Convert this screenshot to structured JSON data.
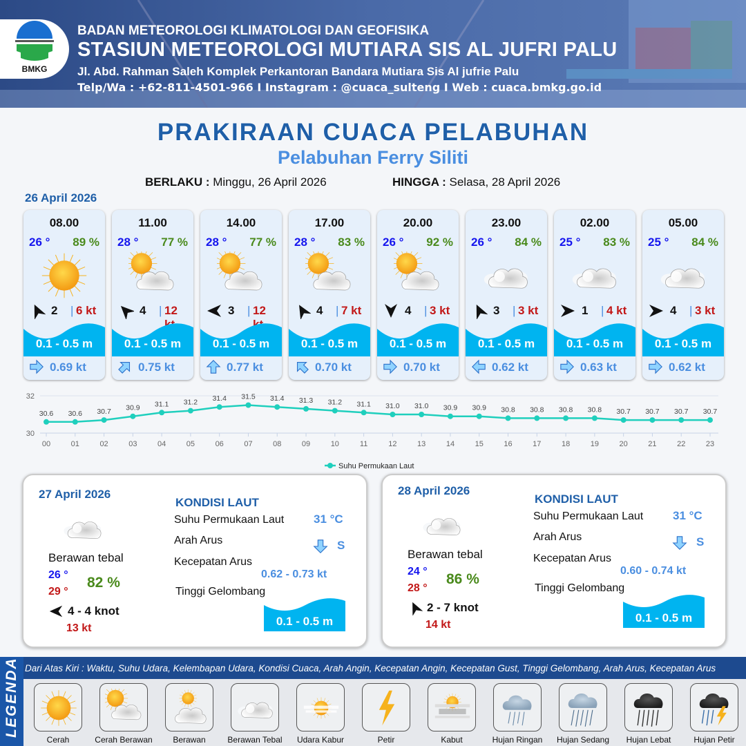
{
  "header": {
    "org": "BADAN METEOROLOGI KLIMATOLOGI DAN GEOFISIKA",
    "station": "STASIUN METEOROLOGI MUTIARA SIS AL JUFRI PALU",
    "address": "Jl. Abd. Rahman Saleh Komplek Perkantoran Bandara Mutiara Sis Al jufrie Palu",
    "contact": "Telp/Wa : +62-811-4501-966  I  Instagram : @cuaca_sulteng  I  Web : cuaca.bmkg.go.id",
    "logo_text": "BMKG"
  },
  "title": "PRAKIRAAN CUACA PELABUHAN",
  "subtitle": "Pelabuhan Ferry Siliti",
  "validity": {
    "from_label": "BERLAKU :",
    "from_value": "Minggu, 26 April 2026",
    "to_label": "HINGGA :",
    "to_value": "Selasa, 28 April 2026"
  },
  "day1_label": "26 April 2026",
  "colors": {
    "temp": "#1515ee",
    "humidity": "#4a8a1c",
    "gust": "#c21818",
    "wave": "#00b4f0",
    "current": "#4a8ee0",
    "chart_line": "#1fcfbd",
    "title": "#1f5fa8"
  },
  "forecasts": [
    {
      "time": "08.00",
      "temp": "26 °",
      "hum": "89 %",
      "weather": "sunny-icon",
      "wind_dir_deg": -25,
      "wind": "2",
      "gust": "6 kt",
      "wave": "0.1 - 0.5 m",
      "current_dir_deg": 90,
      "current": "0.69 kt"
    },
    {
      "time": "11.00",
      "temp": "28 °",
      "hum": "77 %",
      "weather": "partly-cloudy-icon",
      "wind_dir_deg": -45,
      "wind": "4",
      "gust": "12 kt",
      "wave": "0.1 - 0.5 m",
      "current_dir_deg": 45,
      "current": "0.75 kt"
    },
    {
      "time": "14.00",
      "temp": "28 °",
      "hum": "77 %",
      "weather": "partly-cloudy-icon",
      "wind_dir_deg": -90,
      "wind": "3",
      "gust": "12 kt",
      "wave": "0.1 - 0.5 m",
      "current_dir_deg": 0,
      "current": "0.77 kt"
    },
    {
      "time": "17.00",
      "temp": "28 °",
      "hum": "83 %",
      "weather": "partly-cloudy-icon",
      "wind_dir_deg": -30,
      "wind": "4",
      "gust": "7 kt",
      "wave": "0.1 - 0.5 m",
      "current_dir_deg": -45,
      "current": "0.70 kt"
    },
    {
      "time": "20.00",
      "temp": "26 °",
      "hum": "92 %",
      "weather": "partly-cloudy-icon",
      "wind_dir_deg": 180,
      "wind": "4",
      "gust": "3 kt",
      "wave": "0.1 - 0.5 m",
      "current_dir_deg": 90,
      "current": "0.70 kt"
    },
    {
      "time": "23.00",
      "temp": "26 °",
      "hum": "84 %",
      "weather": "cloudy-icon",
      "wind_dir_deg": -25,
      "wind": "3",
      "gust": "3 kt",
      "wave": "0.1 - 0.5 m",
      "current_dir_deg": -90,
      "current": "0.62 kt"
    },
    {
      "time": "02.00",
      "temp": "25 °",
      "hum": "83 %",
      "weather": "cloudy-icon",
      "wind_dir_deg": 90,
      "wind": "1",
      "gust": "4 kt",
      "wave": "0.1 - 0.5 m",
      "current_dir_deg": 90,
      "current": "0.63 kt"
    },
    {
      "time": "05.00",
      "temp": "25 °",
      "hum": "84 %",
      "weather": "cloudy-icon",
      "wind_dir_deg": 90,
      "wind": "4",
      "gust": "3 kt",
      "wave": "0.1 - 0.5 m",
      "current_dir_deg": 90,
      "current": "0.62 kt"
    }
  ],
  "chart_data": {
    "type": "line",
    "x": [
      "00",
      "01",
      "02",
      "03",
      "04",
      "05",
      "06",
      "07",
      "08",
      "09",
      "10",
      "11",
      "12",
      "13",
      "14",
      "15",
      "16",
      "17",
      "18",
      "19",
      "20",
      "21",
      "22",
      "23"
    ],
    "series": [
      {
        "name": "Suhu Permukaan Laut",
        "values": [
          30.6,
          30.6,
          30.7,
          30.9,
          31.1,
          31.2,
          31.4,
          31.5,
          31.4,
          31.3,
          31.2,
          31.1,
          31.0,
          31.0,
          30.9,
          30.9,
          30.8,
          30.8,
          30.8,
          30.8,
          30.7,
          30.7,
          30.7,
          30.7
        ]
      }
    ],
    "ylim": [
      30,
      32
    ],
    "yticks": [
      "30",
      "32"
    ],
    "grid": true,
    "legend": "bottom"
  },
  "days": [
    {
      "date": "27 April 2026",
      "weather": "Berawan tebal",
      "weather_icon": "cloudy-icon",
      "tmin": "26 °",
      "tmax": "29 °",
      "hum": "82 %",
      "wind_dir_deg": -90,
      "wind": "4  - 4 knot",
      "gust": "13 kt",
      "sea_title": "KONDISI LAUT",
      "sst_label": "Suhu Permukaan Laut",
      "sst": "31 °C",
      "cur_dir_label": "Arah Arus",
      "cur_dir_deg": 180,
      "cur_dir": "S",
      "cur_spd_label": "Kecepatan Arus",
      "cur_spd": "0.62  - 0.73 kt",
      "wave_label": "Tinggi Gelombang",
      "wave": "0.1 - 0.5 m"
    },
    {
      "date": "28 April 2026",
      "weather": "Berawan tebal",
      "weather_icon": "cloudy-icon",
      "tmin": "24 °",
      "tmax": "28 °",
      "hum": "86 %",
      "wind_dir_deg": -25,
      "wind": "2  - 7 knot",
      "gust": "14 kt",
      "sea_title": "KONDISI LAUT",
      "sst_label": "Suhu Permukaan Laut",
      "sst": "31 °C",
      "cur_dir_label": "Arah Arus",
      "cur_dir_deg": 180,
      "cur_dir": "S",
      "cur_spd_label": "Kecepatan Arus",
      "cur_spd": "0.60  - 0.74 kt",
      "wave_label": "Tinggi Gelombang",
      "wave": "0.1 - 0.5 m"
    }
  ],
  "legend": {
    "title": "LEGENDA",
    "description": "Dari Atas Kiri : Waktu, Suhu Udara, Kelembapan Udara, Kondisi Cuaca, Arah Angin, Kecepatan Angin, Kecepatan Gust, Tinggi Gelombang, Arah Arus, Kecepatan Arus",
    "items": [
      {
        "label": "Cerah",
        "icon": "sunny-icon"
      },
      {
        "label": "Cerah Berawan",
        "icon": "partly-cloudy-icon"
      },
      {
        "label": "Berawan",
        "icon": "cloudy-sun-icon"
      },
      {
        "label": "Berawan Tebal",
        "icon": "cloudy-icon"
      },
      {
        "label": "Udara Kabur",
        "icon": "haze-icon"
      },
      {
        "label": "Petir",
        "icon": "lightning-icon"
      },
      {
        "label": "Kabut",
        "icon": "fog-icon"
      },
      {
        "label": "Hujan Ringan",
        "icon": "light-rain-icon"
      },
      {
        "label": "Hujan Sedang",
        "icon": "moderate-rain-icon"
      },
      {
        "label": "Hujan Lebat",
        "icon": "heavy-rain-icon"
      },
      {
        "label": "Hujan Petir",
        "icon": "thunderstorm-icon"
      }
    ]
  }
}
